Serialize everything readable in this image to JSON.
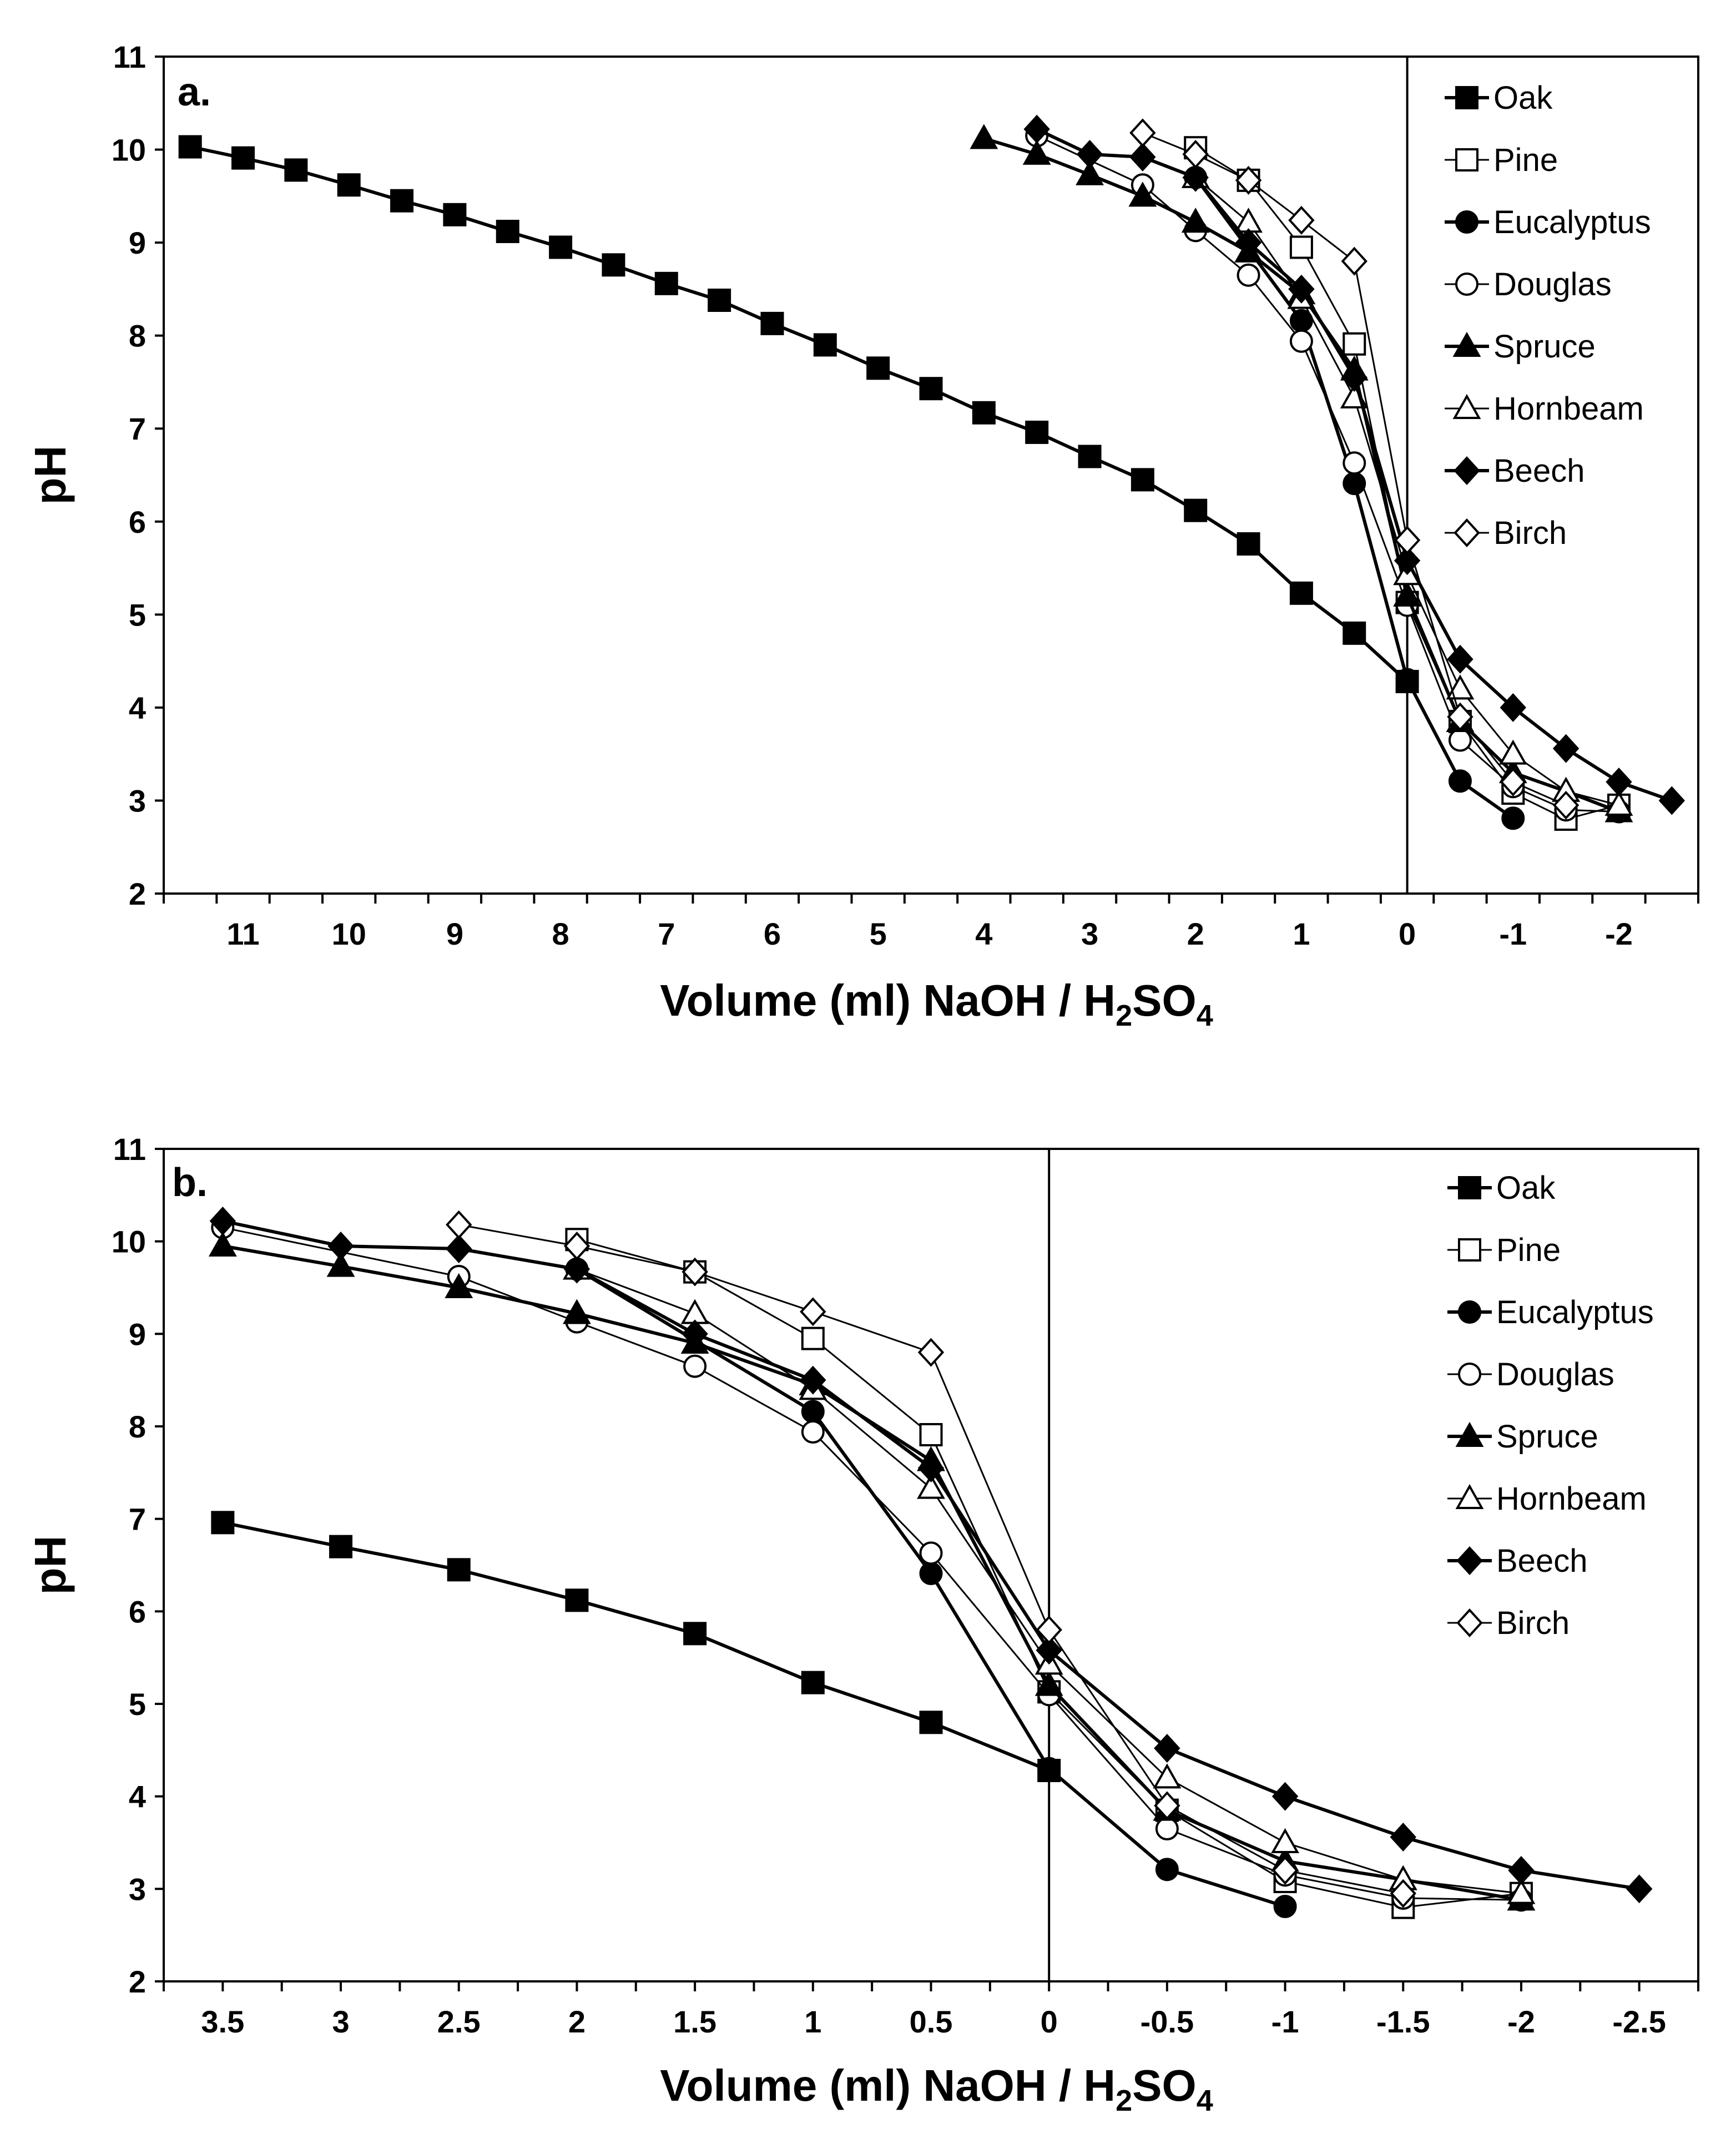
{
  "chart_data": [
    {
      "type": "line",
      "panel_label": "a.",
      "xlabel": "Volume (ml) NaOH / H",
      "xlabel_sub1": "2",
      "xlabel_mid": "SO",
      "xlabel_sub2": "4",
      "ylabel": "pH",
      "xlim": [
        11.75,
        -2.75
      ],
      "ylim": [
        2,
        11
      ],
      "x_ticks": [
        11,
        10,
        9,
        8,
        7,
        6,
        5,
        4,
        3,
        2,
        1,
        0,
        -1,
        -2
      ],
      "x_tick_labels": [
        "11",
        "10",
        "9",
        "8",
        "7",
        "6",
        "5",
        "4",
        "3",
        "2",
        "1",
        "0",
        "-1",
        "-2"
      ],
      "y_ticks": [
        2,
        3,
        4,
        5,
        6,
        7,
        8,
        9,
        10,
        11
      ],
      "y_tick_labels": [
        "2",
        "3",
        "4",
        "5",
        "6",
        "7",
        "8",
        "9",
        "10",
        "11"
      ],
      "vline_x": 0,
      "legend_position": "top-right",
      "series": [
        {
          "name": "Oak",
          "marker": "square",
          "filled": true,
          "x": [
            11.5,
            11,
            10.5,
            10,
            9.5,
            9,
            8.5,
            8,
            7.5,
            7,
            6.5,
            6,
            5.5,
            5,
            4.5,
            4,
            3.5,
            3,
            2.5,
            2,
            1.5,
            1,
            0.5,
            0
          ],
          "y": [
            10.03,
            9.91,
            9.78,
            9.62,
            9.45,
            9.3,
            9.12,
            8.95,
            8.76,
            8.56,
            8.38,
            8.13,
            7.9,
            7.65,
            7.43,
            7.17,
            6.96,
            6.7,
            6.45,
            6.12,
            5.76,
            5.23,
            4.8,
            4.28
          ]
        },
        {
          "name": "Pine",
          "marker": "square",
          "filled": false,
          "x": [
            2,
            1.5,
            1,
            0.5,
            0,
            -0.5,
            -1,
            -1.5,
            -2
          ],
          "y": [
            10.02,
            9.67,
            8.95,
            7.91,
            5.13,
            3.85,
            3.08,
            2.8,
            2.95
          ]
        },
        {
          "name": "Eucalyptus",
          "marker": "circle",
          "filled": true,
          "x": [
            2,
            1,
            0.5,
            0,
            -0.5,
            -1
          ],
          "y": [
            9.7,
            8.16,
            6.41,
            4.3,
            3.21,
            2.81
          ]
        },
        {
          "name": "Douglas",
          "marker": "circle",
          "filled": false,
          "x": [
            3.5,
            2.5,
            2,
            1.5,
            1,
            0.5,
            0,
            -0.5,
            -1,
            -1.5,
            -2
          ],
          "y": [
            10.15,
            9.62,
            9.13,
            8.65,
            7.94,
            6.63,
            5.1,
            3.65,
            3.15,
            2.9,
            2.88
          ]
        },
        {
          "name": "Spruce",
          "marker": "triangle",
          "filled": true,
          "x": [
            4,
            3.5,
            3,
            2.5,
            2,
            1.5,
            1,
            0.5,
            0,
            -0.5,
            -1,
            -1.5,
            -2
          ],
          "y": [
            10.12,
            9.95,
            9.73,
            9.5,
            9.22,
            8.9,
            8.45,
            7.63,
            5.2,
            3.85,
            3.3,
            3.1,
            2.88
          ]
        },
        {
          "name": "Hornbeam",
          "marker": "triangle",
          "filled": false,
          "x": [
            2,
            1.5,
            1,
            0.5,
            0,
            -0.5,
            -1,
            -1.5,
            -2
          ],
          "y": [
            9.7,
            9.22,
            8.4,
            7.33,
            5.43,
            4.2,
            3.5,
            3.1,
            2.95
          ]
        },
        {
          "name": "Beech",
          "marker": "diamond",
          "filled": true,
          "x": [
            3.5,
            3,
            2.5,
            2,
            1.5,
            1,
            0.5,
            0,
            -0.5,
            -1,
            -1.5,
            -2,
            -2.5
          ],
          "y": [
            10.22,
            9.95,
            9.92,
            9.7,
            9.0,
            8.5,
            7.55,
            5.58,
            4.52,
            4.0,
            3.56,
            3.2,
            3.0
          ]
        },
        {
          "name": "Birch",
          "marker": "diamond",
          "filled": false,
          "x": [
            2.5,
            2,
            1.5,
            1,
            0.5,
            0,
            -0.5,
            -1,
            -1.5
          ],
          "y": [
            10.18,
            9.95,
            9.67,
            9.24,
            8.8,
            5.8,
            3.9,
            3.2,
            2.95
          ]
        }
      ]
    },
    {
      "type": "line",
      "panel_label": "b.",
      "xlabel": "Volume (ml) NaOH / H",
      "xlabel_sub1": "2",
      "xlabel_mid": "SO",
      "xlabel_sub2": "4",
      "ylabel": "pH",
      "xlim": [
        3.75,
        -2.75
      ],
      "ylim": [
        2,
        11
      ],
      "x_ticks": [
        3.5,
        3,
        2.5,
        2,
        1.5,
        1,
        0.5,
        0,
        -0.5,
        -1,
        -1.5,
        -2,
        -2.5
      ],
      "x_tick_labels": [
        "3.5",
        "3",
        "2.5",
        "2",
        "1.5",
        "1",
        "0.5",
        "0",
        "-0.5",
        "-1",
        "-1.5",
        "-2",
        "-2.5"
      ],
      "y_ticks": [
        2,
        3,
        4,
        5,
        6,
        7,
        8,
        9,
        10,
        11
      ],
      "y_tick_labels": [
        "2",
        "3",
        "4",
        "5",
        "6",
        "7",
        "8",
        "9",
        "10",
        "11"
      ],
      "vline_x": 0,
      "legend_position": "top-right",
      "series": [
        {
          "name": "Oak",
          "marker": "square",
          "filled": true,
          "x": [
            3.5,
            3,
            2.5,
            2,
            1.5,
            1,
            0.5,
            0
          ],
          "y": [
            6.96,
            6.7,
            6.45,
            6.12,
            5.76,
            5.23,
            4.8,
            4.28
          ]
        },
        {
          "name": "Pine",
          "marker": "square",
          "filled": false,
          "x": [
            2,
            1.5,
            1,
            0.5,
            0,
            -0.5,
            -1,
            -1.5,
            -2
          ],
          "y": [
            10.02,
            9.67,
            8.95,
            7.91,
            5.13,
            3.85,
            3.08,
            2.8,
            2.95
          ]
        },
        {
          "name": "Eucalyptus",
          "marker": "circle",
          "filled": true,
          "x": [
            2,
            1,
            0.5,
            0,
            -0.5,
            -1
          ],
          "y": [
            9.7,
            8.16,
            6.41,
            4.3,
            3.21,
            2.81
          ]
        },
        {
          "name": "Douglas",
          "marker": "circle",
          "filled": false,
          "x": [
            3.5,
            2.5,
            2,
            1.5,
            1,
            0.5,
            0,
            -0.5,
            -1,
            -1.5,
            -2
          ],
          "y": [
            10.15,
            9.62,
            9.13,
            8.65,
            7.94,
            6.63,
            5.1,
            3.65,
            3.15,
            2.9,
            2.88
          ]
        },
        {
          "name": "Spruce",
          "marker": "triangle",
          "filled": true,
          "x": [
            3.5,
            3,
            2.5,
            2,
            1.5,
            1,
            0.5,
            0,
            -0.5,
            -1,
            -1.5,
            -2
          ],
          "y": [
            9.95,
            9.73,
            9.5,
            9.22,
            8.9,
            8.45,
            7.63,
            5.2,
            3.85,
            3.3,
            3.1,
            2.88
          ]
        },
        {
          "name": "Hornbeam",
          "marker": "triangle",
          "filled": false,
          "x": [
            2,
            1.5,
            1,
            0.5,
            0,
            -0.5,
            -1,
            -1.5,
            -2
          ],
          "y": [
            9.7,
            9.22,
            8.4,
            7.33,
            5.43,
            4.2,
            3.5,
            3.1,
            2.95
          ]
        },
        {
          "name": "Beech",
          "marker": "diamond",
          "filled": true,
          "x": [
            3.5,
            3,
            2.5,
            2,
            1.5,
            1,
            0.5,
            0,
            -0.5,
            -1,
            -1.5,
            -2,
            -2.5
          ],
          "y": [
            10.22,
            9.95,
            9.92,
            9.7,
            9.0,
            8.5,
            7.55,
            5.58,
            4.52,
            4.0,
            3.56,
            3.2,
            3.0
          ]
        },
        {
          "name": "Birch",
          "marker": "diamond",
          "filled": false,
          "x": [
            2.5,
            2,
            1.5,
            1,
            0.5,
            0,
            -0.5,
            -1,
            -1.5
          ],
          "y": [
            10.18,
            9.95,
            9.67,
            9.24,
            8.8,
            5.8,
            3.9,
            3.2,
            2.95
          ]
        }
      ]
    }
  ]
}
